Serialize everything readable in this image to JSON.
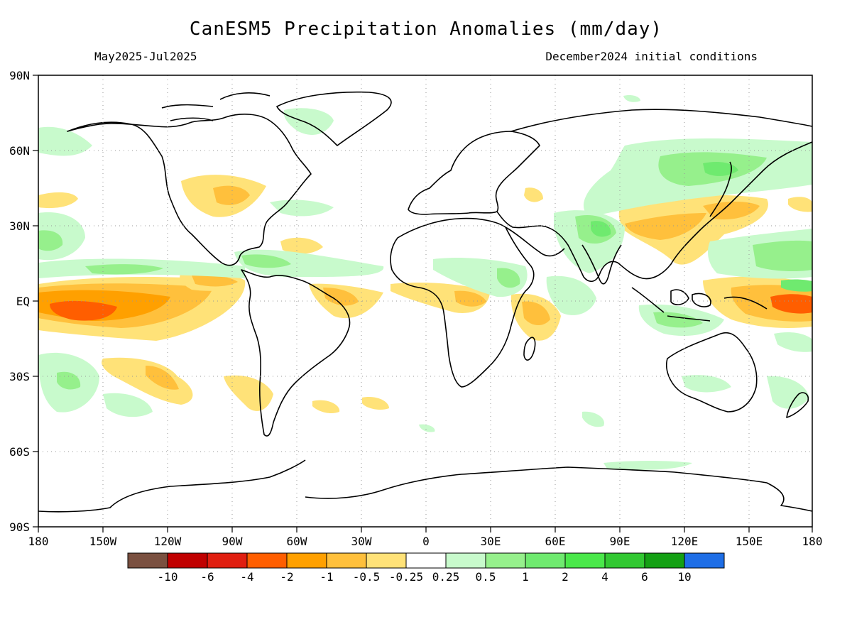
{
  "title": "CanESM5 Precipitation Anomalies (mm/day)",
  "period": "May2025-Jul2025",
  "init": "December2024 initial conditions",
  "lat_labels": [
    "90N",
    "60N",
    "30N",
    "EQ",
    "30S",
    "60S",
    "90S"
  ],
  "lon_labels": [
    "180",
    "150W",
    "120W",
    "90W",
    "60W",
    "30W",
    "0",
    "30E",
    "60E",
    "90E",
    "120E",
    "150E",
    "180"
  ],
  "legend": {
    "colors": [
      "#7a5040",
      "#c00000",
      "#e01e10",
      "#ff5e00",
      "#ffa000",
      "#ffc03c",
      "#ffe278",
      "#ffffff",
      "#c8facc",
      "#96f08c",
      "#6fea6f",
      "#4ae84a",
      "#32c832",
      "#14a014",
      "#1e6ee6"
    ],
    "labels": [
      "-10",
      "-6",
      "-4",
      "-2",
      "-1",
      "-0.5",
      "-0.25",
      "0.25",
      "0.5",
      "1",
      "2",
      "4",
      "6",
      "10"
    ]
  }
}
